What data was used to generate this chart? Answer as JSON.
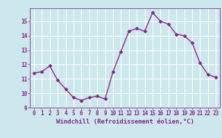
{
  "hours": [
    0,
    1,
    2,
    3,
    4,
    5,
    6,
    7,
    8,
    9,
    10,
    11,
    12,
    13,
    14,
    15,
    16,
    17,
    18,
    19,
    20,
    21,
    22,
    23
  ],
  "values": [
    11.4,
    11.5,
    11.9,
    10.9,
    10.3,
    9.7,
    9.5,
    9.7,
    9.8,
    9.6,
    11.5,
    12.9,
    14.3,
    14.5,
    14.3,
    15.6,
    15.0,
    14.8,
    14.1,
    14.0,
    13.5,
    12.1,
    11.3,
    11.1
  ],
  "line_color": "#882288",
  "marker": "D",
  "marker_size": 2.5,
  "bg_color": "#cce8ec",
  "grid_color": "#ffffff",
  "xlabel": "Windchill (Refroidissement éolien,°C)",
  "ylim": [
    9,
    15.9
  ],
  "xlim": [
    -0.5,
    23.5
  ],
  "yticks": [
    9,
    10,
    11,
    12,
    13,
    14,
    15
  ],
  "xticks": [
    0,
    1,
    2,
    3,
    4,
    5,
    6,
    7,
    8,
    9,
    10,
    11,
    12,
    13,
    14,
    15,
    16,
    17,
    18,
    19,
    20,
    21,
    22,
    23
  ],
  "tick_color": "#882288",
  "tick_fontsize": 5.5,
  "xlabel_fontsize": 6.5,
  "line_width": 1.0
}
